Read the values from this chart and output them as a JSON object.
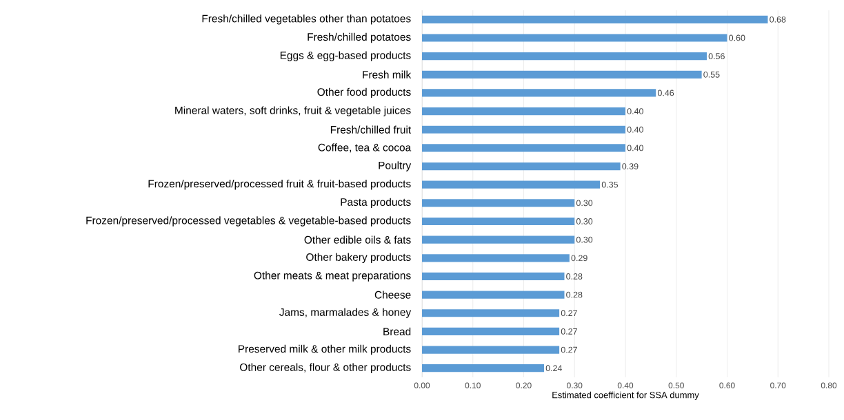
{
  "chart_data": {
    "type": "bar",
    "orientation": "horizontal",
    "xlabel": "Estimated coefficient for SSA dummy",
    "categories": [
      "Fresh/chilled vegetables other than potatoes",
      "Fresh/chilled potatoes",
      "Eggs & egg-based products",
      "Fresh milk",
      "Other food products",
      "Mineral waters, soft drinks, fruit & vegetable juices",
      "Fresh/chilled fruit",
      "Coffee, tea & cocoa",
      "Poultry",
      "Frozen/preserved/processed fruit & fruit-based products",
      "Pasta products",
      "Frozen/preserved/processed vegetables & vegetable-based products",
      "Other edible oils & fats",
      "Other bakery products",
      "Other meats & meat preparations",
      "Cheese",
      "Jams, marmalades & honey",
      "Bread",
      "Preserved milk & other milk products",
      "Other cereals, flour & other products"
    ],
    "values": [
      0.68,
      0.6,
      0.56,
      0.55,
      0.46,
      0.4,
      0.4,
      0.4,
      0.39,
      0.35,
      0.3,
      0.3,
      0.3,
      0.29,
      0.28,
      0.28,
      0.27,
      0.27,
      0.27,
      0.24
    ],
    "value_labels": [
      "0.68",
      "0.60",
      "0.56",
      "0.55",
      "0.46",
      "0.40",
      "0.40",
      "0.40",
      "0.39",
      "0.35",
      "0.30",
      "0.30",
      "0.30",
      "0.29",
      "0.28",
      "0.28",
      "0.27",
      "0.27",
      "0.27",
      "0.24"
    ],
    "color": "#5b9bd5",
    "xlim": [
      0,
      0.8
    ],
    "xticks": [
      {
        "value": 0,
        "label": "0.00"
      },
      {
        "value": 0.1,
        "label": "0.10"
      },
      {
        "value": 0.2,
        "label": "0.20"
      },
      {
        "value": 0.3,
        "label": "0.30"
      },
      {
        "value": 0.4,
        "label": "0.40"
      },
      {
        "value": 0.5,
        "label": "0.50"
      },
      {
        "value": 0.6,
        "label": "0.60"
      },
      {
        "value": 0.7,
        "label": "0.70"
      },
      {
        "value": 0.8,
        "label": "0.80"
      }
    ],
    "grid": "x"
  }
}
